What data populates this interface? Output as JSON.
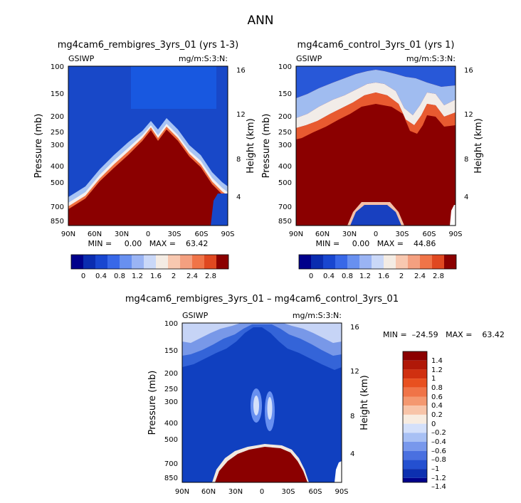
{
  "figure": {
    "title": "ANN"
  },
  "colors": {
    "red_max": "#8b0000",
    "blue_bg": "#1040c0",
    "blue_deep": "#00008b"
  },
  "chart_data": [
    {
      "type": "heatmap",
      "id": "panel1",
      "title": "mg4cam6_rembigres_3yrs_01 (yrs 1-3)",
      "left_label": "GSIWP",
      "right_label": "mg/m:S:3:N:",
      "ylabel": "Pressure (mb)",
      "y2label": "Height (km)",
      "x_ticks": [
        "90N",
        "60N",
        "30N",
        "0",
        "30S",
        "60S",
        "90S"
      ],
      "y_ticks": [
        "100",
        "150",
        "200",
        "250",
        "300",
        "400",
        "500",
        "700",
        "850"
      ],
      "y2_ticks": [
        "16",
        "12",
        "8",
        "4"
      ],
      "min_max": "MIN =     0.00   MAX =    63.42",
      "colorbar_ticks": [
        "0",
        "0.4",
        "0.8",
        "1.2",
        "1.6",
        "2",
        "2.4",
        "2.8"
      ]
    },
    {
      "type": "heatmap",
      "id": "panel2",
      "title": "mg4cam6_control_3yrs_01 (yrs 1)",
      "left_label": "GSIWP",
      "right_label": "mg/m:S:3:N:",
      "ylabel": "Pressure (mb)",
      "y2label": "Height (km)",
      "x_ticks": [
        "90N",
        "60N",
        "30N",
        "0",
        "30S",
        "60S",
        "90S"
      ],
      "y_ticks": [
        "100",
        "150",
        "200",
        "250",
        "300",
        "400",
        "500",
        "700",
        "850"
      ],
      "y2_ticks": [
        "16",
        "12",
        "8",
        "4"
      ],
      "min_max": "MIN =     0.00   MAX =    44.86",
      "colorbar_ticks": [
        "0",
        "0.4",
        "0.8",
        "1.2",
        "1.6",
        "2",
        "2.4",
        "2.8"
      ]
    },
    {
      "type": "heatmap",
      "id": "panel3",
      "title": "mg4cam6_rembigres_3yrs_01 – mg4cam6_control_3yrs_01",
      "left_label": "GSIWP",
      "right_label": "mg/m:S:3:N:",
      "ylabel": "Pressure (mb)",
      "y2label": "Height (km)",
      "x_ticks": [
        "90N",
        "60N",
        "30N",
        "0",
        "30S",
        "60S",
        "90S"
      ],
      "y_ticks": [
        "100",
        "150",
        "200",
        "250",
        "300",
        "400",
        "500",
        "700",
        "850"
      ],
      "y2_ticks": [
        "16",
        "12",
        "8",
        "4"
      ],
      "min_max": "MIN =  –24.59   MAX =    63.42",
      "colorbar_ticks": [
        "1.4",
        "1.2",
        "1",
        "0.8",
        "0.6",
        "0.4",
        "0.2",
        "0",
        "–0.2",
        "–0.4",
        "–0.6",
        "–0.8",
        "–1",
        "–1.2",
        "–1.4"
      ]
    }
  ]
}
